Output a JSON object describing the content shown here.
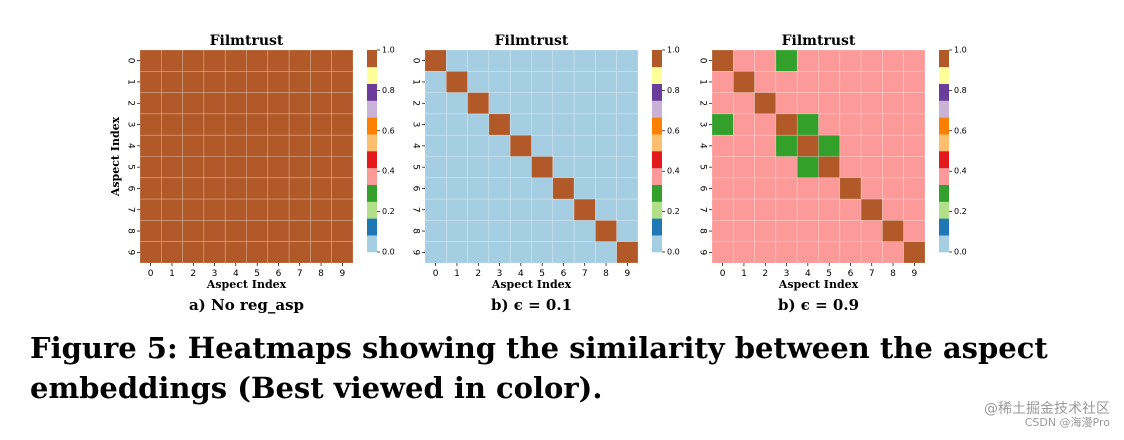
{
  "chart_data": [
    {
      "type": "heatmap",
      "title": "Filmtrust",
      "xlabel": "Aspect Index",
      "ylabel": "Aspect Index",
      "subtitle": "a) No reg_asp",
      "x": [
        0,
        1,
        2,
        3,
        4,
        5,
        6,
        7,
        8,
        9
      ],
      "y": [
        0,
        1,
        2,
        3,
        4,
        5,
        6,
        7,
        8,
        9
      ],
      "values": [
        [
          1,
          1,
          1,
          1,
          1,
          1,
          1,
          1,
          1,
          1
        ],
        [
          1,
          1,
          1,
          1,
          1,
          1,
          1,
          1,
          1,
          1
        ],
        [
          1,
          1,
          1,
          1,
          1,
          1,
          1,
          1,
          1,
          1
        ],
        [
          1,
          1,
          1,
          1,
          1,
          1,
          1,
          1,
          1,
          1
        ],
        [
          1,
          1,
          1,
          1,
          1,
          1,
          1,
          1,
          1,
          1
        ],
        [
          1,
          1,
          1,
          1,
          1,
          1,
          1,
          1,
          1,
          1
        ],
        [
          1,
          1,
          1,
          1,
          1,
          1,
          1,
          1,
          1,
          1
        ],
        [
          1,
          1,
          1,
          1,
          1,
          1,
          1,
          1,
          1,
          1
        ],
        [
          1,
          1,
          1,
          1,
          1,
          1,
          1,
          1,
          1,
          1
        ],
        [
          1,
          1,
          1,
          1,
          1,
          1,
          1,
          1,
          1,
          1
        ]
      ],
      "colorbar": {
        "min": 0.0,
        "max": 1.0,
        "ticks": [
          "0.0",
          "0.2",
          "0.4",
          "0.6",
          "0.8",
          "1.0"
        ]
      }
    },
    {
      "type": "heatmap",
      "title": "Filmtrust",
      "xlabel": "Aspect Index",
      "ylabel": "",
      "subtitle": "b) ϵ = 0.1",
      "x": [
        0,
        1,
        2,
        3,
        4,
        5,
        6,
        7,
        8,
        9
      ],
      "y": [
        0,
        1,
        2,
        3,
        4,
        5,
        6,
        7,
        8,
        9
      ],
      "values": [
        [
          1,
          0,
          0,
          0,
          0,
          0,
          0,
          0,
          0,
          0
        ],
        [
          0,
          1,
          0,
          0,
          0,
          0,
          0,
          0,
          0,
          0
        ],
        [
          0,
          0,
          1,
          0,
          0,
          0,
          0,
          0,
          0,
          0
        ],
        [
          0,
          0,
          0,
          1,
          0,
          0,
          0,
          0,
          0,
          0
        ],
        [
          0,
          0,
          0,
          0,
          1,
          0,
          0,
          0,
          0,
          0
        ],
        [
          0,
          0,
          0,
          0,
          0,
          1,
          0,
          0,
          0,
          0
        ],
        [
          0,
          0,
          0,
          0,
          0,
          0,
          1,
          0,
          0,
          0
        ],
        [
          0,
          0,
          0,
          0,
          0,
          0,
          0,
          1,
          0,
          0
        ],
        [
          0,
          0,
          0,
          0,
          0,
          0,
          0,
          0,
          1,
          0
        ],
        [
          0,
          0,
          0,
          0,
          0,
          0,
          0,
          0,
          0,
          1
        ]
      ],
      "colorbar": {
        "min": 0.0,
        "max": 1.0,
        "ticks": [
          "0.0",
          "0.2",
          "0.4",
          "0.6",
          "0.8",
          "1.0"
        ]
      }
    },
    {
      "type": "heatmap",
      "title": "Filmtrust",
      "xlabel": "Aspect Index",
      "ylabel": "",
      "subtitle": "b) ϵ = 0.9",
      "x": [
        0,
        1,
        2,
        3,
        4,
        5,
        6,
        7,
        8,
        9
      ],
      "y": [
        0,
        1,
        2,
        3,
        4,
        5,
        6,
        7,
        8,
        9
      ],
      "values": [
        [
          1,
          0.4,
          0.4,
          0.25,
          0.4,
          0.4,
          0.4,
          0.4,
          0.4,
          0.4
        ],
        [
          0.4,
          1,
          0.4,
          0.4,
          0.4,
          0.4,
          0.4,
          0.4,
          0.4,
          0.4
        ],
        [
          0.4,
          0.4,
          1,
          0.4,
          0.4,
          0.4,
          0.4,
          0.4,
          0.4,
          0.4
        ],
        [
          0.25,
          0.4,
          0.4,
          1,
          0.25,
          0.4,
          0.4,
          0.4,
          0.4,
          0.4
        ],
        [
          0.4,
          0.4,
          0.4,
          0.25,
          1,
          0.25,
          0.4,
          0.4,
          0.4,
          0.4
        ],
        [
          0.4,
          0.4,
          0.4,
          0.4,
          0.25,
          1,
          0.4,
          0.4,
          0.4,
          0.4
        ],
        [
          0.4,
          0.4,
          0.4,
          0.4,
          0.4,
          0.4,
          1,
          0.4,
          0.4,
          0.4
        ],
        [
          0.4,
          0.4,
          0.4,
          0.4,
          0.4,
          0.4,
          0.4,
          1,
          0.4,
          0.4
        ],
        [
          0.4,
          0.4,
          0.4,
          0.4,
          0.4,
          0.4,
          0.4,
          0.4,
          1,
          0.4
        ],
        [
          0.4,
          0.4,
          0.4,
          0.4,
          0.4,
          0.4,
          0.4,
          0.4,
          0.4,
          1
        ]
      ],
      "colorbar": {
        "min": 0.0,
        "max": 1.0,
        "ticks": [
          "0.0",
          "0.2",
          "0.4",
          "0.6",
          "0.8",
          "1.0"
        ]
      }
    }
  ],
  "colormap": [
    "#a6cee3",
    "#1f78b4",
    "#b2df8a",
    "#33a02c",
    "#fb9a99",
    "#e31a1c",
    "#fdbf6f",
    "#ff7f00",
    "#cab2d6",
    "#6a3d9a",
    "#ffff99",
    "#b15928"
  ],
  "caption": "Figure 5: Heatmaps showing the similarity between the aspect embeddings (Best viewed in color).",
  "watermark": {
    "line1": "@稀土掘金技术社区",
    "line2": "CSDN @海漫Pro"
  }
}
